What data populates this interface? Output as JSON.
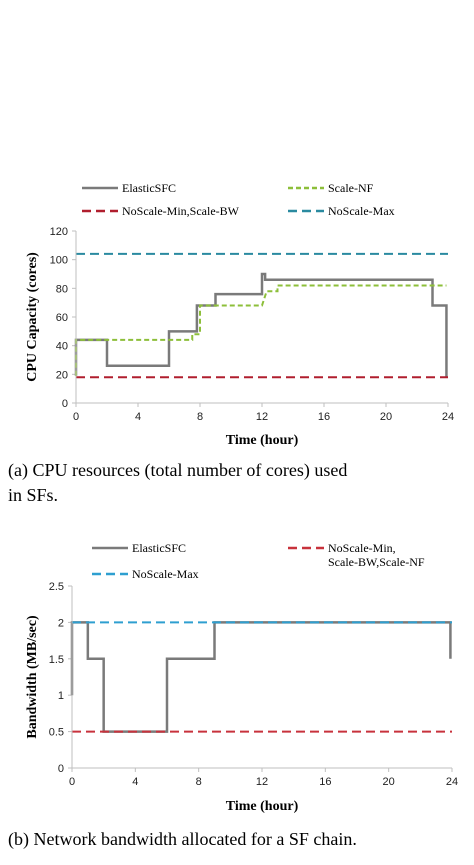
{
  "colors": {
    "elasticsfc": "#7a7a7a",
    "scale_nf": "#8dbf3a",
    "noscale_min": "#b01e2e",
    "noscale_max": "#2a8aa0",
    "axis": "#bfbfbf"
  },
  "chart_data": [
    {
      "type": "line",
      "caption_lines": [
        "(a) CPU resources (total number of cores) used",
        "in SFs."
      ],
      "xlabel": "Time (hour)",
      "ylabel": "CPU Capacity (cores)",
      "xlim": [
        0,
        24
      ],
      "ylim": [
        0,
        120
      ],
      "x_ticks": [
        0,
        4,
        8,
        12,
        16,
        20,
        24
      ],
      "y_ticks": [
        0,
        20,
        40,
        60,
        80,
        100,
        120
      ],
      "grid": false,
      "legend_position": "top",
      "series": [
        {
          "name": "ElasticSFC",
          "style": "solid",
          "color": "#7a7a7a",
          "x": [
            0,
            0,
            2,
            2,
            6,
            6,
            7.8,
            7.8,
            9,
            9,
            12,
            12,
            12.2,
            12.2,
            23,
            23,
            23.9,
            23.9
          ],
          "y": [
            19,
            44,
            44,
            26,
            26,
            50,
            50,
            68,
            68,
            76,
            76,
            90,
            90,
            86,
            86,
            68,
            68,
            18
          ]
        },
        {
          "name": "Scale-NF",
          "style": "dashed",
          "color": "#8dbf3a",
          "x": [
            0,
            0,
            6,
            7.5,
            7.5,
            8,
            8,
            12,
            12.3,
            13,
            13,
            23.9
          ],
          "y": [
            19,
            44,
            44,
            44,
            48,
            48,
            68,
            68,
            78,
            78,
            82,
            82
          ]
        },
        {
          "name": "NoScale-Min,Scale-BW",
          "style": "dashed",
          "color": "#b01e2e",
          "x": [
            0,
            24
          ],
          "y": [
            18,
            18
          ]
        },
        {
          "name": "NoScale-Max",
          "style": "dashed",
          "color": "#2a8aa0",
          "x": [
            0,
            24
          ],
          "y": [
            104,
            104
          ]
        }
      ]
    },
    {
      "type": "line",
      "caption_lines": [
        "(b) Network bandwidth allocated for a SF chain."
      ],
      "xlabel": "Time (hour)",
      "ylabel": "Bandwidth (MB/sec)",
      "xlim": [
        0,
        24
      ],
      "ylim": [
        0,
        2.5
      ],
      "x_ticks": [
        0,
        4,
        8,
        12,
        16,
        20,
        24
      ],
      "y_ticks": [
        0,
        0.5,
        1,
        1.5,
        2,
        2.5
      ],
      "y_tick_labels": [
        "0",
        "0.5",
        "1",
        "1.5",
        "2",
        "2.5"
      ],
      "grid": false,
      "legend_position": "top",
      "series": [
        {
          "name": "ElasticSFC",
          "style": "solid",
          "color": "#7a7a7a",
          "x": [
            0,
            0,
            1,
            1,
            2,
            2,
            6,
            6,
            9,
            9,
            23.9,
            23.9
          ],
          "y": [
            1,
            2,
            2,
            1.5,
            1.5,
            0.5,
            0.5,
            1.5,
            1.5,
            2,
            2,
            1.5
          ]
        },
        {
          "name": "NoScale-Min,",
          "name_line2": "Scale-BW,Scale-NF",
          "style": "dashed",
          "color": "#c8323c",
          "x": [
            0,
            24
          ],
          "y": [
            0.5,
            0.5
          ]
        },
        {
          "name": "NoScale-Max",
          "style": "dashed",
          "color": "#2e9fd0",
          "x": [
            0,
            24
          ],
          "y": [
            2,
            2
          ]
        }
      ]
    }
  ]
}
